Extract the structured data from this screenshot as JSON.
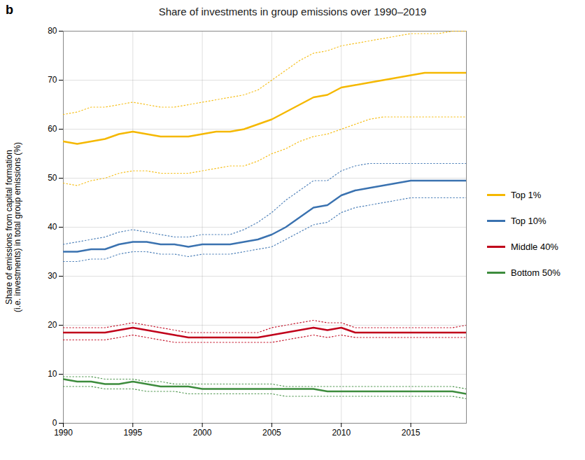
{
  "chart_data": {
    "type": "line",
    "title": "Share of investments in group emissions over 1990–2019",
    "ylabel": "Share of emissions from capital formation\n(i.e. investments) in total group emissions (%)",
    "annotations": [
      "b"
    ],
    "x": [
      1990,
      1991,
      1992,
      1993,
      1994,
      1995,
      1996,
      1997,
      1998,
      1999,
      2000,
      2001,
      2002,
      2003,
      2004,
      2005,
      2006,
      2007,
      2008,
      2009,
      2010,
      2011,
      2012,
      2013,
      2014,
      2015,
      2016,
      2017,
      2018,
      2019
    ],
    "series": [
      {
        "name": "Top 1%",
        "color": "#F5B800",
        "values": [
          57.5,
          57.0,
          57.5,
          58.0,
          59.0,
          59.5,
          59.0,
          58.5,
          58.5,
          58.5,
          59.0,
          59.5,
          59.5,
          60.0,
          61.0,
          62.0,
          63.5,
          65.0,
          66.5,
          67.0,
          68.5,
          69.0,
          69.5,
          70.0,
          70.5,
          71.0,
          71.5,
          71.5,
          71.5,
          71.5
        ],
        "upper": [
          63.0,
          63.5,
          64.5,
          64.5,
          65.0,
          65.5,
          65.0,
          64.5,
          64.5,
          65.0,
          65.5,
          66.0,
          66.5,
          67.0,
          68.0,
          70.0,
          72.0,
          74.0,
          75.5,
          76.0,
          77.0,
          77.5,
          78.0,
          78.5,
          79.0,
          79.5,
          79.5,
          79.5,
          80.0,
          80.0
        ],
        "lower": [
          49.0,
          48.5,
          49.5,
          50.0,
          51.0,
          51.5,
          51.5,
          51.0,
          51.0,
          51.0,
          51.5,
          52.0,
          52.5,
          52.5,
          53.5,
          55.0,
          56.0,
          57.5,
          58.5,
          59.0,
          60.0,
          61.0,
          62.0,
          62.5,
          62.5,
          62.5,
          62.5,
          62.5,
          62.5,
          62.5
        ]
      },
      {
        "name": "Top 10%",
        "color": "#3A72B0",
        "values": [
          35.0,
          35.0,
          35.5,
          35.5,
          36.5,
          37.0,
          37.0,
          36.5,
          36.5,
          36.0,
          36.5,
          36.5,
          36.5,
          37.0,
          37.5,
          38.5,
          40.0,
          42.0,
          44.0,
          44.5,
          46.5,
          47.5,
          48.0,
          48.5,
          49.0,
          49.5,
          49.5,
          49.5,
          49.5,
          49.5
        ],
        "upper": [
          36.5,
          37.0,
          37.5,
          38.0,
          39.0,
          39.5,
          39.0,
          38.5,
          38.0,
          38.0,
          38.5,
          38.5,
          38.5,
          39.5,
          41.0,
          43.0,
          45.5,
          47.5,
          49.5,
          49.5,
          51.5,
          52.5,
          53.0,
          53.0,
          53.0,
          53.0,
          53.0,
          53.0,
          53.0,
          53.0
        ],
        "lower": [
          33.0,
          33.0,
          33.5,
          33.5,
          34.5,
          35.0,
          35.0,
          34.5,
          34.5,
          34.0,
          34.5,
          34.5,
          34.5,
          35.0,
          35.5,
          36.0,
          37.5,
          39.0,
          40.5,
          41.0,
          43.0,
          44.0,
          44.5,
          45.0,
          45.5,
          46.0,
          46.0,
          46.0,
          46.0,
          46.0
        ]
      },
      {
        "name": "Middle 40%",
        "color": "#C0001A",
        "values": [
          18.5,
          18.5,
          18.5,
          18.5,
          19.0,
          19.5,
          19.0,
          18.5,
          18.0,
          17.5,
          17.5,
          17.5,
          17.5,
          17.5,
          17.5,
          18.0,
          18.5,
          19.0,
          19.5,
          19.0,
          19.5,
          18.5,
          18.5,
          18.5,
          18.5,
          18.5,
          18.5,
          18.5,
          18.5,
          18.5
        ],
        "upper": [
          19.5,
          19.5,
          19.5,
          19.5,
          20.0,
          20.5,
          20.0,
          19.5,
          19.0,
          18.5,
          18.5,
          18.5,
          18.5,
          18.5,
          18.5,
          19.5,
          20.0,
          20.5,
          21.0,
          20.5,
          20.5,
          19.5,
          19.5,
          19.5,
          19.5,
          19.5,
          19.5,
          19.5,
          19.5,
          20.0
        ],
        "lower": [
          17.0,
          17.0,
          17.0,
          17.0,
          17.5,
          18.0,
          17.5,
          17.0,
          16.5,
          16.5,
          16.5,
          16.5,
          16.5,
          16.5,
          16.5,
          16.5,
          17.0,
          17.5,
          18.0,
          17.5,
          18.0,
          17.5,
          17.5,
          17.5,
          17.5,
          17.5,
          17.5,
          17.5,
          17.5,
          17.5
        ]
      },
      {
        "name": "Bottom 50%",
        "color": "#3D8C3D",
        "values": [
          9.0,
          8.5,
          8.5,
          8.0,
          8.0,
          8.5,
          8.0,
          7.5,
          7.5,
          7.5,
          7.0,
          7.0,
          7.0,
          7.0,
          7.0,
          7.0,
          7.0,
          7.0,
          7.0,
          6.5,
          6.5,
          6.5,
          6.5,
          6.5,
          6.5,
          6.5,
          6.5,
          6.5,
          6.5,
          6.0
        ],
        "upper": [
          9.5,
          9.5,
          9.5,
          9.0,
          9.0,
          9.0,
          8.5,
          8.5,
          8.0,
          8.0,
          8.0,
          8.0,
          8.0,
          8.0,
          8.0,
          8.0,
          7.5,
          7.5,
          7.5,
          7.5,
          7.5,
          7.5,
          7.5,
          7.5,
          7.5,
          7.5,
          7.5,
          7.5,
          7.5,
          7.0
        ],
        "lower": [
          7.5,
          7.5,
          7.5,
          7.0,
          7.0,
          7.0,
          6.5,
          6.5,
          6.5,
          6.0,
          6.0,
          6.0,
          6.0,
          6.0,
          6.0,
          6.0,
          5.5,
          5.5,
          5.5,
          5.5,
          5.5,
          5.5,
          5.5,
          5.5,
          5.5,
          5.5,
          5.5,
          5.5,
          5.5,
          5.0
        ]
      }
    ],
    "xlim": [
      1990,
      2019
    ],
    "xticks": [
      1990,
      1995,
      2000,
      2005,
      2010,
      2015
    ],
    "ylim": [
      0,
      80
    ],
    "yticks": [
      0,
      10,
      20,
      30,
      40,
      50,
      60,
      70,
      80
    ],
    "grid": true,
    "legend": "right"
  }
}
